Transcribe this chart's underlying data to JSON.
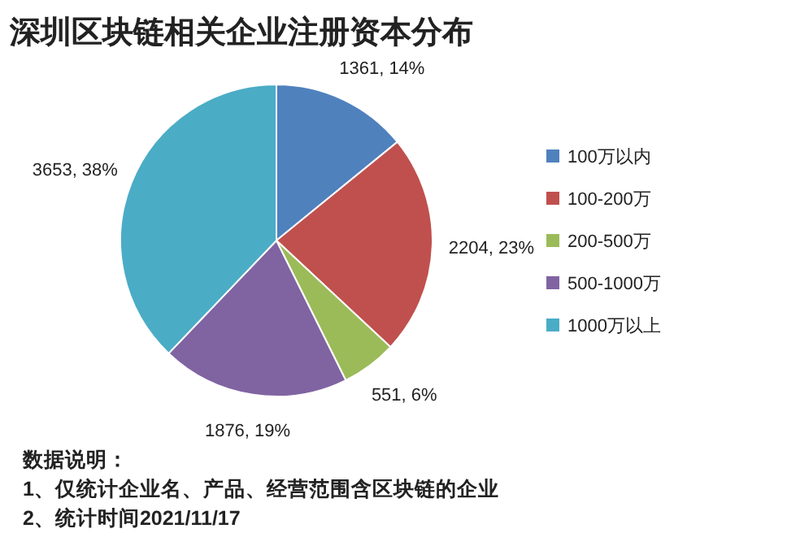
{
  "chart_data": {
    "type": "pie",
    "title": "深圳区块链相关企业注册资本分布",
    "categories": [
      "100万以内",
      "100-200万",
      "200-500万",
      "500-1000万",
      "1000万以上"
    ],
    "values": [
      1361,
      2204,
      551,
      1876,
      3653
    ],
    "value_labels": [
      "1361, 14%",
      "2204, 23%",
      "551, 6%",
      "1876, 19%",
      "3653, 38%"
    ],
    "colors": [
      "#4f81bd",
      "#c0504d",
      "#9bbb59",
      "#8064a2",
      "#4bacc6"
    ],
    "legend": "right",
    "annotations": [
      "数据说明：",
      "1、仅统计企业名、产品、经营范围含区块链的企业",
      "2、统计时间2021/11/17"
    ]
  }
}
